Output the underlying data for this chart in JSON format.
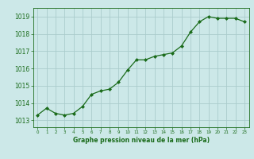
{
  "x": [
    0,
    1,
    2,
    3,
    4,
    5,
    6,
    7,
    8,
    9,
    10,
    11,
    12,
    13,
    14,
    15,
    16,
    17,
    18,
    19,
    20,
    21,
    22,
    23
  ],
  "y": [
    1013.3,
    1013.7,
    1013.4,
    1013.3,
    1013.4,
    1013.8,
    1014.5,
    1014.7,
    1014.8,
    1015.2,
    1015.9,
    1016.5,
    1016.5,
    1016.7,
    1016.8,
    1016.9,
    1017.3,
    1018.1,
    1018.7,
    1019.0,
    1018.9,
    1018.9,
    1018.9,
    1018.7
  ],
  "line_color": "#1a6b1a",
  "marker_color": "#1a6b1a",
  "bg_color": "#cce8e8",
  "grid_color": "#aacccc",
  "ylabel_ticks": [
    1013,
    1014,
    1015,
    1016,
    1017,
    1018,
    1019
  ],
  "xlabel": "Graphe pression niveau de la mer (hPa)",
  "xlabel_color": "#1a6b1a",
  "ylim": [
    1012.6,
    1019.5
  ],
  "xlim": [
    -0.5,
    23.5
  ]
}
